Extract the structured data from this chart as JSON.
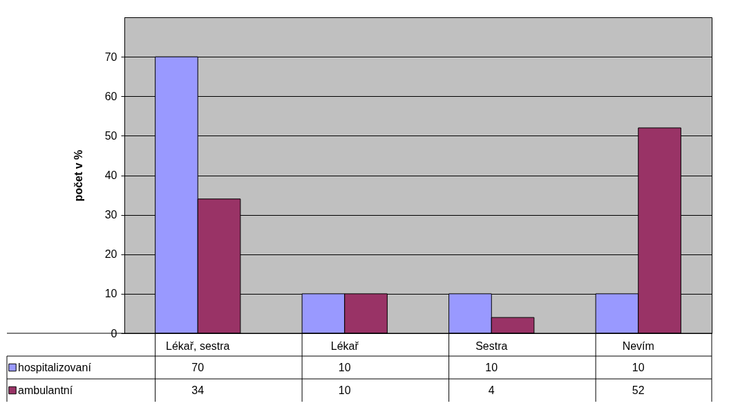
{
  "chart_data": {
    "type": "bar",
    "ylabel": "počet v %",
    "categories": [
      "Lékař, sestra",
      "Lékař",
      "Sestra",
      "Nevím"
    ],
    "series": [
      {
        "name": "hospitalizovaní",
        "color": "#9999ff",
        "values": [
          70,
          10,
          10,
          10
        ]
      },
      {
        "name": "ambulantní",
        "color": "#993366",
        "values": [
          34,
          10,
          4,
          52
        ]
      }
    ],
    "ylim": [
      0,
      80
    ],
    "yticks": [
      0,
      10,
      20,
      30,
      40,
      50,
      60,
      70
    ],
    "grid": "y",
    "legend": "bottom",
    "data_labels": true
  }
}
